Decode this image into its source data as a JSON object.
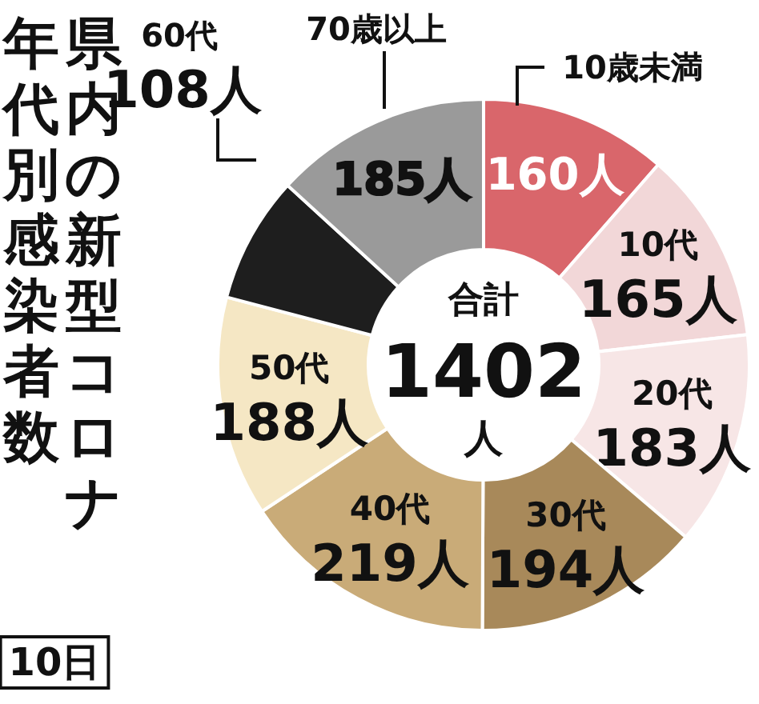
{
  "chart_data": {
    "type": "donut",
    "title": "県内の新型コロナ年代別感染者数",
    "categories": [
      "10歳未満",
      "10代",
      "20代",
      "30代",
      "40代",
      "50代",
      "60代",
      "70歳以上"
    ],
    "values": [
      160,
      165,
      183,
      194,
      219,
      188,
      108,
      185
    ],
    "value_labels": [
      "160人",
      "165人",
      "183人",
      "194人",
      "219人",
      "188人",
      "108人",
      "185人"
    ],
    "colors": [
      "#d9666b",
      "#f2d7d8",
      "#f7e6e6",
      "#a8895a",
      "#c9ab78",
      "#f5e7c4",
      "#1e1e1e",
      "#9a9a9a"
    ],
    "annotations": [
      "合計",
      "1402",
      "人",
      "10日"
    ]
  }
}
